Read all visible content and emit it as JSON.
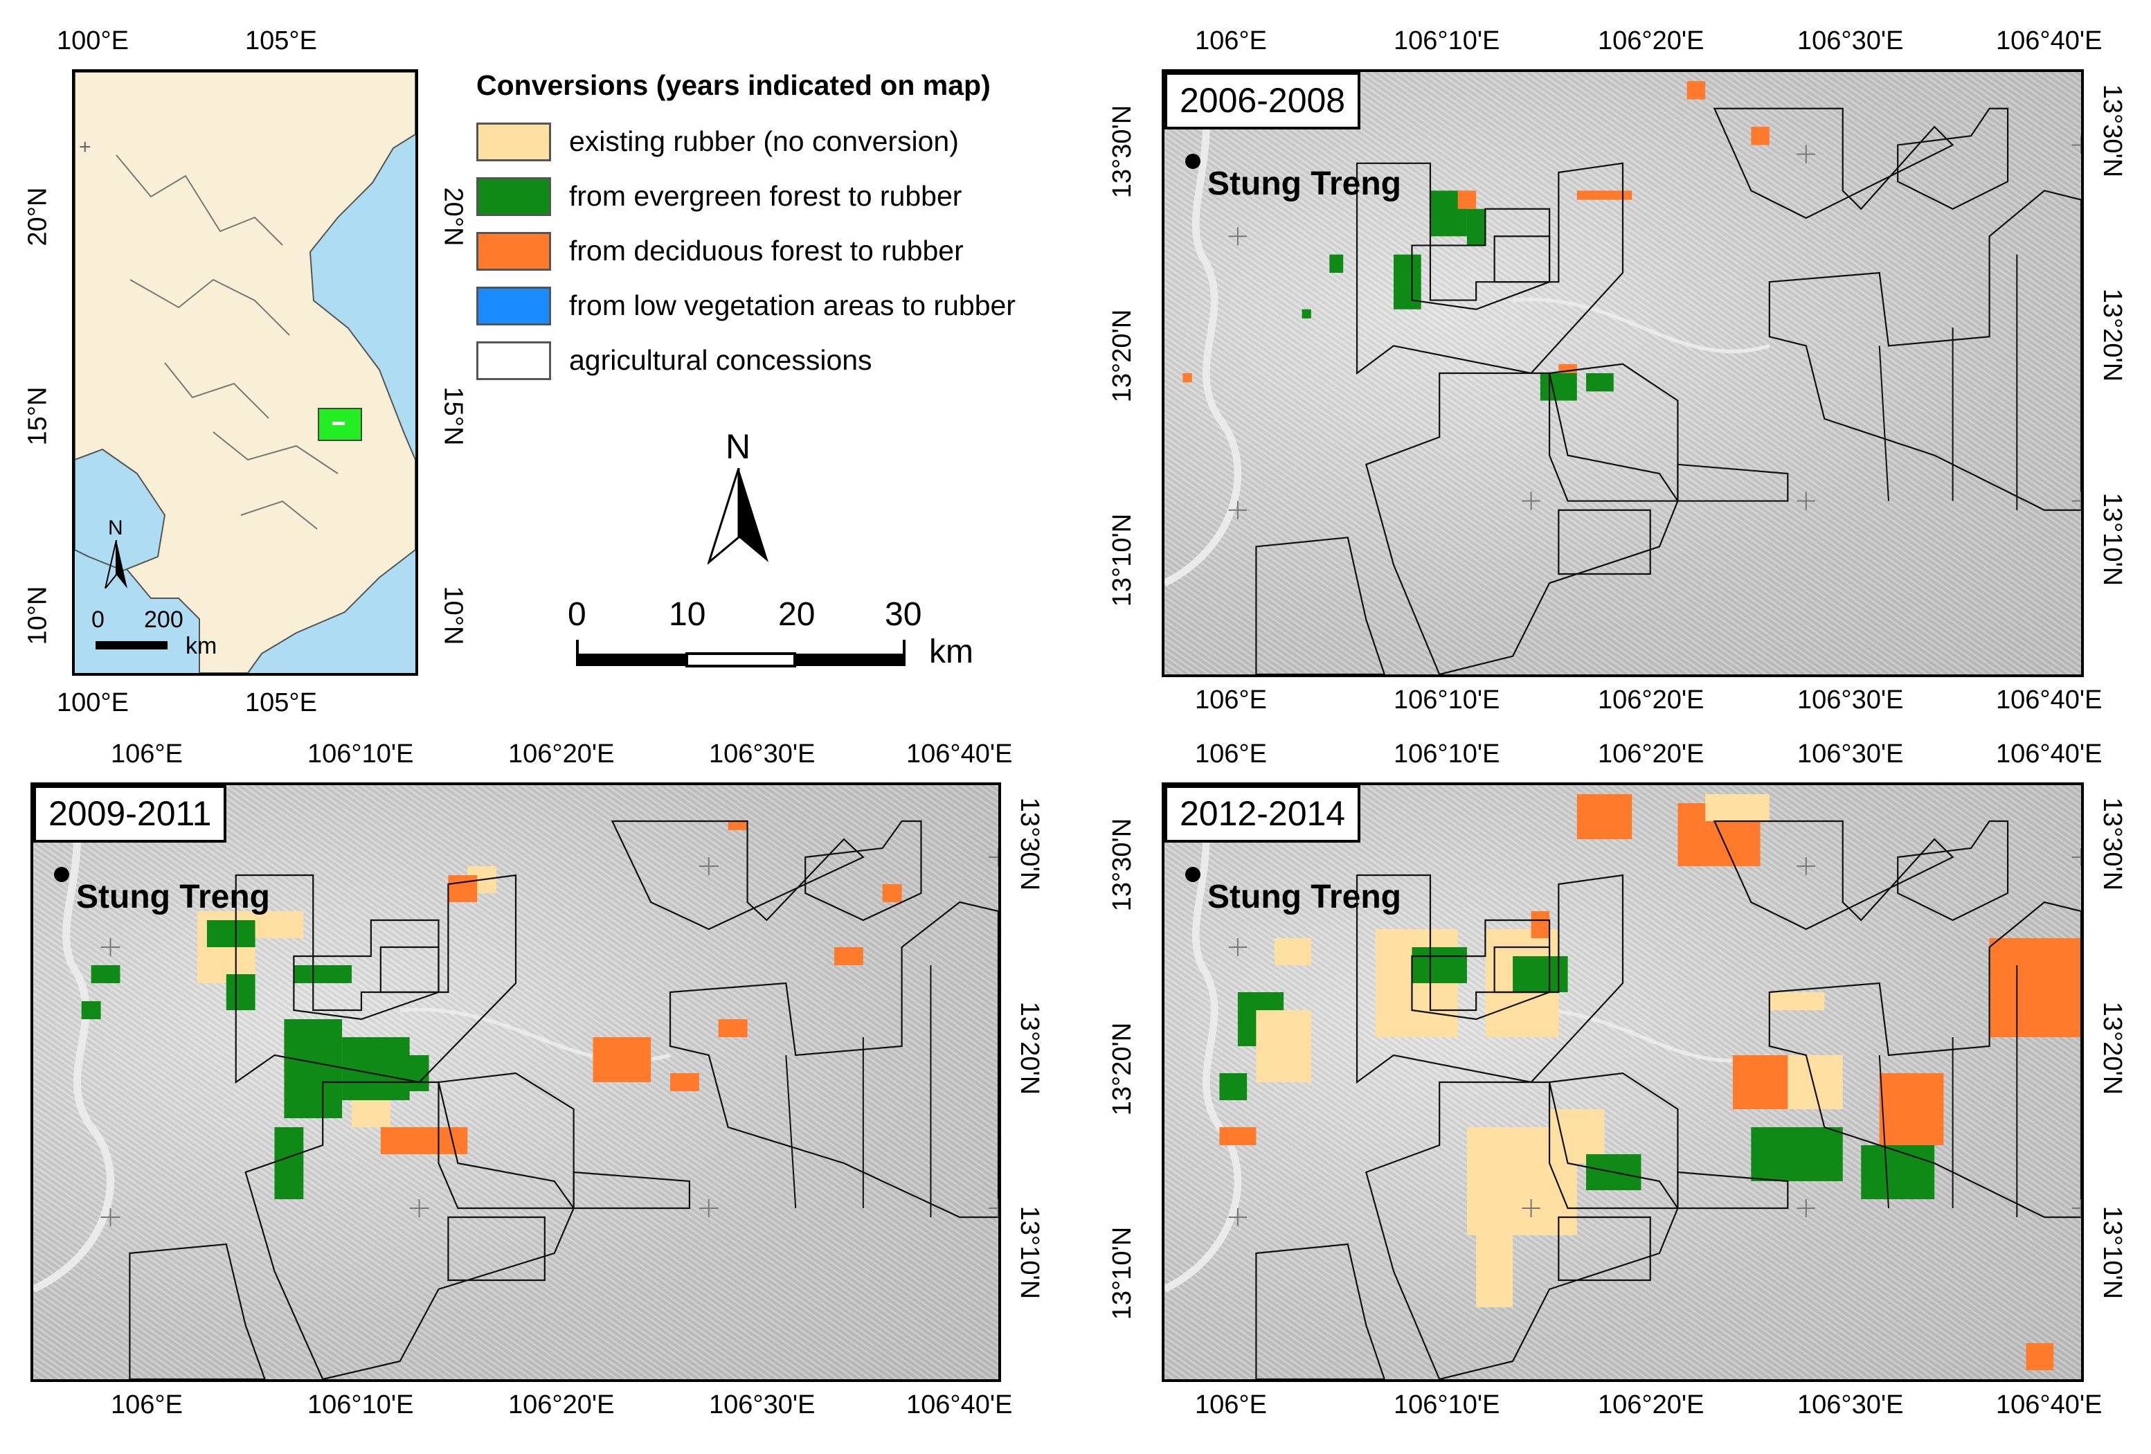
{
  "figure": {
    "legend": {
      "title": "Conversions (years indicated on map)",
      "items": [
        {
          "label": "existing rubber (no conversion)",
          "color": "#fde0a1"
        },
        {
          "label": "from evergreen forest to rubber",
          "color": "#108a16"
        },
        {
          "label": "from deciduous forest to rubber",
          "color": "#ff7a2a"
        },
        {
          "label": "from low vegetation areas to rubber",
          "color": "#1a8cff"
        },
        {
          "label": "agricultural concessions",
          "color": "#ffffff"
        }
      ]
    },
    "north_arrow": {
      "label": "N"
    },
    "scale_bar": {
      "ticks": [
        "0",
        "10",
        "20",
        "30"
      ],
      "unit": "km"
    },
    "overview_map": {
      "top_lons": [
        "100°E",
        "105°E"
      ],
      "bottom_lons": [
        "100°E",
        "105°E"
      ],
      "left_lats": [
        "20°N",
        "15°N",
        "10°N"
      ],
      "right_lats": [
        "20°N",
        "15°N",
        "10°N"
      ],
      "scale": {
        "ticks": [
          "0",
          "200"
        ],
        "unit": "km"
      },
      "north": "N",
      "colors": {
        "land": "#f8efd6",
        "sea": "#aedcf3",
        "study_area": "#22ee22"
      }
    },
    "panels": [
      {
        "period": "2006-2008",
        "town": "Stung Treng",
        "top_lons": [
          "106°E",
          "106°10'E",
          "106°20'E",
          "106°30'E",
          "106°40'E"
        ],
        "bottom_lons": [
          "106°E",
          "106°10'E",
          "106°20'E",
          "106°30'E",
          "106°40'E"
        ],
        "left_lats": [
          "13°30'N",
          "13°20'N",
          "13°10'N"
        ],
        "right_lats": [
          "13°30'N",
          "13°20'N",
          "13°10'N"
        ]
      },
      {
        "period": "2009-2011",
        "town": "Stung Treng",
        "top_lons": [
          "106°E",
          "106°10'E",
          "106°20'E",
          "106°30'E",
          "106°40'E"
        ],
        "bottom_lons": [
          "106°E",
          "106°10'E",
          "106°20'E",
          "106°30'E",
          "106°40'E"
        ],
        "left_lats": [
          "13°30'N",
          "13°20'N",
          "13°10'N"
        ],
        "right_lats": [
          "13°30'N",
          "13°20'N",
          "13°10'N"
        ]
      },
      {
        "period": "2012-2014",
        "town": "Stung Treng",
        "top_lons": [
          "106°E",
          "106°10'E",
          "106°20'E",
          "106°30'E",
          "106°40'E"
        ],
        "bottom_lons": [
          "106°E",
          "106°10'E",
          "106°20'E",
          "106°30'E",
          "106°40'E"
        ],
        "left_lats": [
          "13°30'N",
          "13°20'N",
          "13°10'N"
        ],
        "right_lats": [
          "13°30'N",
          "13°20'N",
          "13°10'N"
        ]
      }
    ]
  }
}
